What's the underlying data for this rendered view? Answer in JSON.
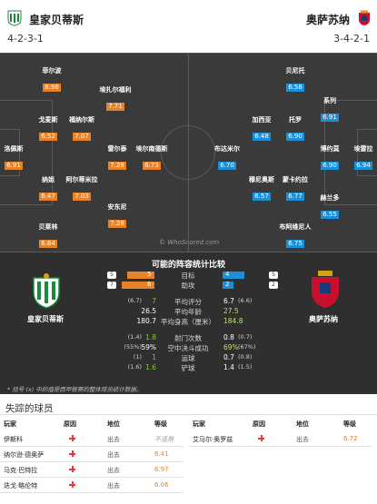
{
  "header": {
    "home_name": "皇家贝蒂斯",
    "home_formation": "4-2-3-1",
    "away_name": "奥萨苏纳",
    "away_formation": "3-4-2-1"
  },
  "pitch": {
    "watermark": "© WhoScored.com",
    "home_players": [
      {
        "name": "菲尔波",
        "rating": "6.96"
      },
      {
        "name": "戈麦斯",
        "rating": "6.52"
      },
      {
        "name": "洛佩斯",
        "rating": "6.91"
      },
      {
        "name": "纳姐",
        "rating": "6.47"
      },
      {
        "name": "贝莱林",
        "rating": "6.84"
      },
      {
        "name": "埃扎尔福利",
        "rating": "7.71"
      },
      {
        "name": "福纳尔斯",
        "rating": "7.07"
      },
      {
        "name": "阿尔蒂米拉",
        "rating": "7.03"
      },
      {
        "name": "雷尔泰",
        "rating": "7.28"
      },
      {
        "name": "安东尼",
        "rating": "7.28"
      },
      {
        "name": "埃尔南德斯",
        "rating": "6.73"
      }
    ],
    "away_players": [
      {
        "name": "贝尼托",
        "rating": "6.58"
      },
      {
        "name": "系列",
        "rating": "6.91"
      },
      {
        "name": "加西亚",
        "rating": "6.48"
      },
      {
        "name": "托罗",
        "rating": "6.90"
      },
      {
        "name": "布达米尔",
        "rating": "6.70"
      },
      {
        "name": "博约莫",
        "rating": "6.90"
      },
      {
        "name": "埃雷拉",
        "rating": "6.94"
      },
      {
        "name": "穆尼奥斯",
        "rating": "6.57"
      },
      {
        "name": "蒙卡约拉",
        "rating": "6.77"
      },
      {
        "name": "赫兰多",
        "rating": "6.55"
      },
      {
        "name": "布阿维尼人",
        "rating": "6.75"
      }
    ]
  },
  "stats": {
    "title": "可能的阵容统计比较",
    "home_team": "皇家贝蒂斯",
    "away_team": "奥萨苏纳",
    "bars": [
      {
        "label": "目标",
        "home_badge": "(5)",
        "home": 5,
        "away": 4,
        "away_badge": "(5)"
      },
      {
        "label": "助攻",
        "home_badge": "(7)",
        "home": 6,
        "away": 2,
        "away_badge": "(2)"
      }
    ],
    "rows": [
      {
        "label": "平均评分",
        "home_badge": "(6.7)",
        "home": "7",
        "away": "6.7",
        "away_badge": "(6.6)"
      },
      {
        "label": "平均年龄",
        "home_badge": "",
        "home": "26.5",
        "away": "27.5",
        "away_badge": ""
      },
      {
        "label": "平均身高（厘米）",
        "home_badge": "",
        "home": "180.7",
        "away": "184.8",
        "away_badge": ""
      },
      {
        "label": "射门次数",
        "home_badge": "(1.4)",
        "home": "1.8",
        "away": "0.8",
        "away_badge": "(0.7)"
      },
      {
        "label": "空中决斗成功",
        "home_badge": "(55%)",
        "home": "59%",
        "away": "69%",
        "away_badge": "(67%)"
      },
      {
        "label": "运球",
        "home_badge": "(1)",
        "home": "1",
        "away": "0.7",
        "away_badge": "(0.8)"
      },
      {
        "label": "铲球",
        "home_badge": "(1.6)",
        "home": "1.6",
        "away": "1.4",
        "away_badge": "(1.5)"
      }
    ],
    "footnote": "* 括号 (x) 中的值是西甲联赛的整体球员统计数据。",
    "colors": {
      "home": "#e8822a",
      "away": "#1d8fd6",
      "highlight_home": "#7ec93a",
      "highlight_away": "#b7e36a"
    }
  },
  "missing": {
    "title": "失踪的球员",
    "headers": {
      "player": "玩家",
      "reason": "原因",
      "status": "地位",
      "rating": "等级"
    },
    "home_rows": [
      {
        "player": "伊斯科",
        "status": "出去",
        "rating": "不适用"
      },
      {
        "player": "纳尔逊·德奥萨",
        "status": "出去",
        "rating": "6.41"
      },
      {
        "player": "马克·巴特拉",
        "status": "出去",
        "rating": "6.97"
      },
      {
        "player": "迭戈·略伦特",
        "status": "出去",
        "rating": "6.06"
      }
    ],
    "away_rows": [
      {
        "player": "艾马尔·奥罗兹",
        "status": "出去",
        "rating": "6.72"
      }
    ]
  }
}
